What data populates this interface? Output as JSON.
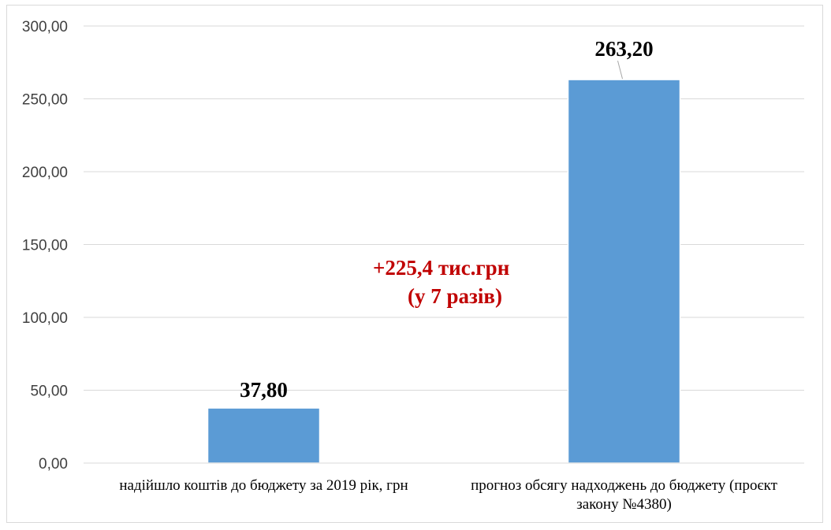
{
  "chart_data": {
    "type": "bar",
    "categories": [
      [
        "надійшло коштів до бюджету за 2019 рік, грн"
      ],
      [
        "прогноз обсягу надходжень до бюджету (проєкт",
        "закону №4380)"
      ]
    ],
    "values": [
      37.8,
      263.2
    ],
    "data_labels": [
      "37,80",
      "263,20"
    ],
    "ylim": [
      0,
      300
    ],
    "yticks": [
      0,
      50,
      100,
      150,
      200,
      250,
      300
    ],
    "ytick_labels": [
      "0,00",
      "50,00",
      "100,00",
      "150,00",
      "200,00",
      "250,00",
      "300,00"
    ],
    "grid": true,
    "bar_color": "#5b9bd5",
    "annotation": {
      "lines": [
        "+225,4 тис.грн",
        "(у 7 разів)"
      ],
      "color": "#c00000"
    }
  }
}
